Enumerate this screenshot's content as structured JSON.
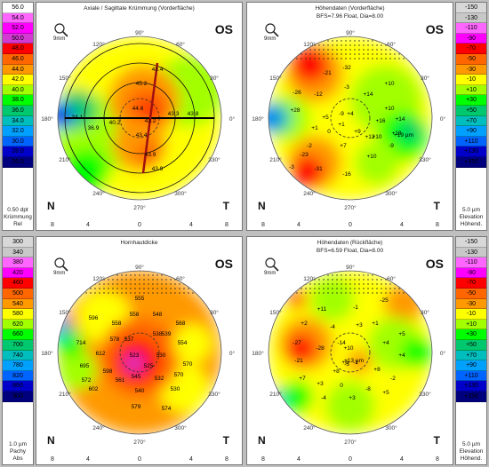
{
  "panels": {
    "tl": {
      "title": "Axiale / Sagittale Krümmung (Vorderfläche)",
      "subtitle": "",
      "eye": "OS",
      "deg": [
        "90°",
        "120°",
        "150°",
        "180°",
        "210°",
        "240°",
        "270°",
        "300°",
        "330°",
        "0°",
        "30°",
        "60°"
      ],
      "values": [
        "43.4",
        "45.2",
        "44.6",
        "34.1",
        "36.9",
        "40.2",
        "43.2",
        "43.3",
        "43.8",
        "43.4",
        "43.9",
        "43.9"
      ]
    },
    "tr": {
      "title": "Höhendaten (Vorderfläche)",
      "subtitle": "BFS=7.96 Float, Dia=8.00",
      "eye": "OS",
      "deg": [
        "90°",
        "120°",
        "150°",
        "180°",
        "210°",
        "240°",
        "270°",
        "300°",
        "330°",
        "0°",
        "30°",
        "60°"
      ],
      "values": [
        "-26",
        "-32",
        "-21",
        "-12",
        "-3",
        "+14",
        "+10",
        "+10",
        "+28",
        "+5",
        "-9",
        "+4",
        "+16",
        "+14",
        "+1",
        "0",
        "+9",
        "+10",
        "+18",
        "-2",
        "+7",
        "+10",
        "-23",
        "-31",
        "-16",
        "-3",
        "+12",
        "+1",
        "-9",
        "+19 µm"
      ]
    },
    "bl": {
      "title": "Hornhautdicke",
      "subtitle": "",
      "eye": "OS",
      "deg": [
        "90°",
        "120°",
        "150°",
        "180°",
        "210°",
        "240°",
        "270°",
        "300°",
        "330°",
        "0°",
        "30°",
        "60°"
      ],
      "values": [
        "555",
        "558",
        "568",
        "596",
        "558",
        "548",
        "539",
        "714",
        "612",
        "537",
        "523",
        "554",
        "695",
        "530",
        "570",
        "602",
        "561",
        "545",
        "532",
        "540",
        "530",
        "579",
        "574",
        "578",
        "538",
        "598",
        "570",
        "572",
        "525"
      ]
    },
    "br": {
      "title": "Höhendaten (Rückfläche)",
      "subtitle": "BFS=6.59 Float, Dia=8.00",
      "eye": "OS",
      "deg": [
        "90°",
        "120°",
        "150°",
        "180°",
        "210°",
        "240°",
        "270°",
        "300°",
        "330°",
        "0°",
        "30°",
        "60°"
      ],
      "values": [
        "+11",
        "-1",
        "-25",
        "+2",
        "-4",
        "+3",
        "+1",
        "-27",
        "-28",
        "-14",
        "+4",
        "+5",
        "-21",
        "+10",
        "+6",
        "-1",
        "-3",
        "+8",
        "+13 µm",
        "+7",
        "+3",
        "0",
        "-8",
        "-4",
        "+3",
        "+5",
        "-2",
        "+4",
        "+8"
      ]
    }
  },
  "axis_ticks": [
    "8",
    "4",
    "0",
    "4",
    "8"
  ],
  "zoom_label": "9mm",
  "left_scale_top": {
    "values": [
      "56.0",
      "54.0",
      "52.0",
      "50.0",
      "48.0",
      "46.0",
      "44.0",
      "42.0",
      "40.0",
      "38.0",
      "36.0",
      "34.0",
      "32.0",
      "30.0",
      "28.0",
      "26.0"
    ],
    "colors": [
      "#fff",
      "#ff66ff",
      "#ff00ff",
      "#d23ad2",
      "#ff0000",
      "#ff6600",
      "#ff9900",
      "#ffff00",
      "#a2ff00",
      "#00ff00",
      "#00c86e",
      "#00bebe",
      "#00a0ff",
      "#0064ff",
      "#0000c8",
      "#00007d"
    ],
    "foot": [
      "0.50 dpt",
      "Krümmung",
      "Rel"
    ]
  },
  "left_scale_bottom": {
    "values": [
      "300",
      "340",
      "380",
      "420",
      "460",
      "500",
      "540",
      "580",
      "620",
      "660",
      "700",
      "740",
      "780",
      "820",
      "860",
      "900"
    ],
    "colors": [
      "#d8d8d8",
      "#c8c8c8",
      "#ff66ff",
      "#ff00ff",
      "#ff0000",
      "#ff6600",
      "#ff9900",
      "#ffff00",
      "#a2ff00",
      "#00ff00",
      "#00c86e",
      "#00bebe",
      "#00a0ff",
      "#0064ff",
      "#0000c8",
      "#00007d"
    ],
    "foot": [
      "1.0 µm",
      "Pachy",
      "Abs"
    ]
  },
  "right_scale_top": {
    "values": [
      "-150",
      "-130",
      "-110",
      "-90",
      "-70",
      "-50",
      "-30",
      "-10",
      "+10",
      "+30",
      "+50",
      "+70",
      "+90",
      "+110",
      "+130",
      "+150"
    ],
    "colors": [
      "#d8d8d8",
      "#c8c8c8",
      "#ff66ff",
      "#ff00ff",
      "#ff0000",
      "#ff6600",
      "#ff9900",
      "#ffff00",
      "#a2ff00",
      "#00ff00",
      "#00c86e",
      "#00bebe",
      "#00a0ff",
      "#0064ff",
      "#0000c8",
      "#00007d"
    ],
    "foot": [
      "5.0 µm",
      "Elevation",
      "Höhend."
    ]
  },
  "right_scale_bottom": {
    "values": [
      "-150",
      "-130",
      "-110",
      "-90",
      "-70",
      "-50",
      "-30",
      "-10",
      "+10",
      "+30",
      "+50",
      "+70",
      "+90",
      "+110",
      "+130",
      "+150"
    ],
    "colors": [
      "#d8d8d8",
      "#c8c8c8",
      "#ff66ff",
      "#ff00ff",
      "#ff0000",
      "#ff6600",
      "#ff9900",
      "#ffff00",
      "#a2ff00",
      "#00ff00",
      "#00c86e",
      "#00bebe",
      "#00a0ff",
      "#0064ff",
      "#0000c8",
      "#00007d"
    ],
    "foot": [
      "5.0 µm",
      "Elevation",
      "Höhend."
    ]
  },
  "corner_labels": {
    "nasal": "N",
    "temporal": "T"
  }
}
